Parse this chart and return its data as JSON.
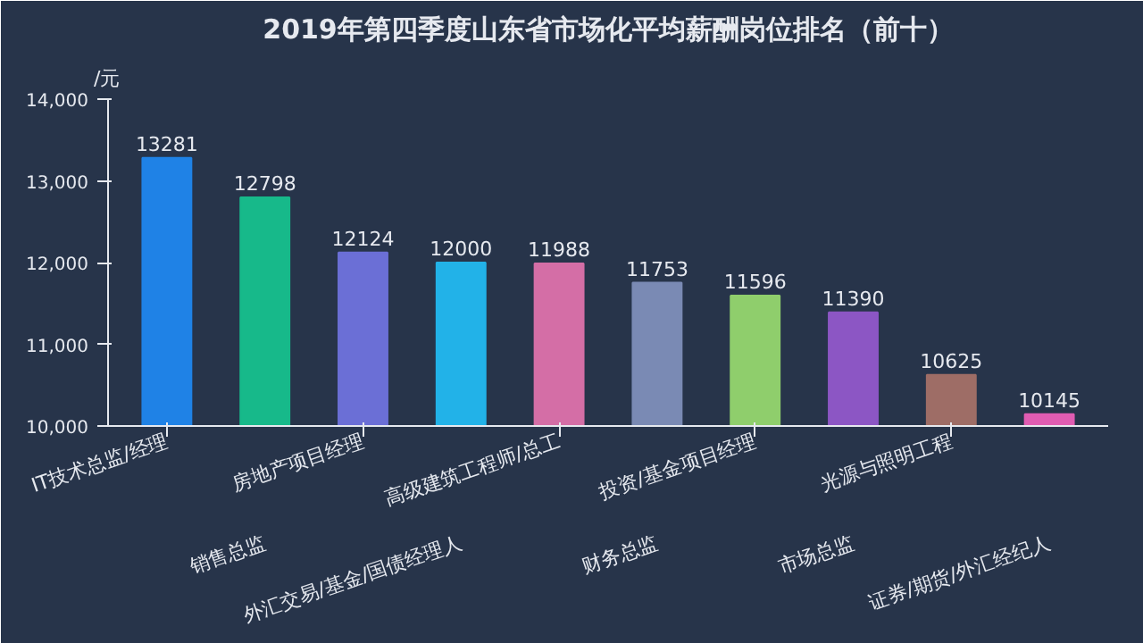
{
  "chart_data": {
    "type": "bar",
    "title": "2019年第四季度山东省市场化平均薪酬岗位排名（前十）",
    "ylabel": "/元",
    "categories": [
      "IT技术总监/经理",
      "销售总监",
      "房地产项目经理",
      "外汇交易/基金/国债经理人",
      "高级建筑工程师/总工",
      "财务总监",
      "投资/基金项目经理",
      "市场总监",
      "光源与照明工程",
      "证券/期货/外汇经纪人"
    ],
    "values": [
      13281,
      12798,
      12124,
      12000,
      11988,
      11753,
      11596,
      11390,
      10625,
      10145
    ],
    "colors": [
      "#1f82e6",
      "#17b98a",
      "#6b6fd6",
      "#22b2e8",
      "#d46ea6",
      "#7a8ab4",
      "#8fce6c",
      "#8c56c4",
      "#9e6d66",
      "#e05cb2"
    ],
    "ylim": [
      10000,
      14000
    ],
    "yticks": [
      {
        "value": 10000,
        "label": "10,000"
      },
      {
        "value": 11000,
        "label": "11,000"
      },
      {
        "value": 12000,
        "label": "12,000"
      },
      {
        "value": 13000,
        "label": "13,000"
      },
      {
        "value": 14000,
        "label": "14,000"
      }
    ],
    "data_labels": true,
    "grid": false
  }
}
